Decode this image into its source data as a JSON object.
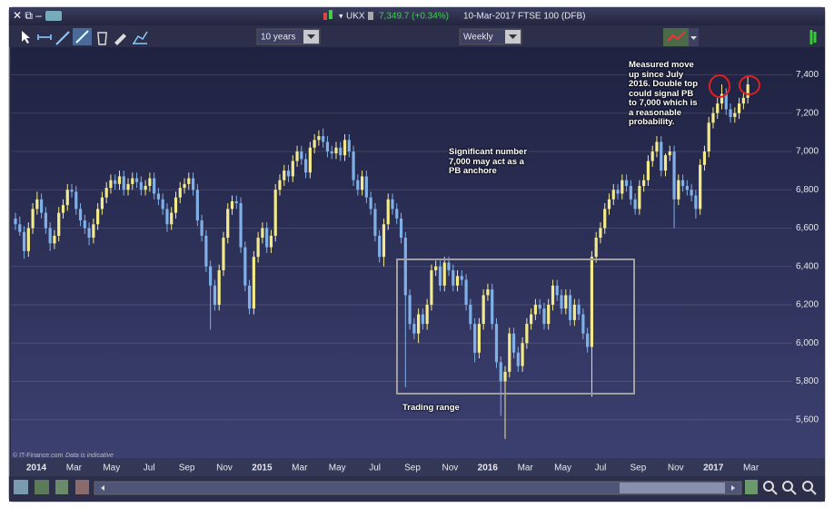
{
  "ui": {
    "symbol": "UKX",
    "price": "7,349.7 (+0.34%)",
    "header_info": "10-Mar-2017 FTSE 100 (DFB)",
    "period": "10 years",
    "interval": "Weekly",
    "copyright": "© IT-Finance.com",
    "disclaimer": "Data is indicative"
  },
  "chart_data": {
    "type": "candlestick",
    "annotations": [
      "Significant number 7,000 may act as a PB anchore",
      "Measured move up since July 2016. Double top could signal PB to 7,000 which is a reasonable probability.",
      "Trading range"
    ],
    "xticks": [
      "2014",
      "Mar",
      "May",
      "Jul",
      "Sep",
      "Nov",
      "2015",
      "Mar",
      "May",
      "Jul",
      "Sep",
      "Nov",
      "2016",
      "Mar",
      "May",
      "Jul",
      "Sep",
      "Nov",
      "2017",
      "Mar"
    ],
    "ylim": [
      5400,
      7530
    ],
    "yticks": [
      {
        "value": 5600,
        "label": "5,600"
      },
      {
        "value": 5800,
        "label": "5,800"
      },
      {
        "value": 6000,
        "label": "6,000"
      },
      {
        "value": 6200,
        "label": "6,200"
      },
      {
        "value": 6400,
        "label": "6,400"
      },
      {
        "value": 6600,
        "label": "6,600"
      },
      {
        "value": 6800,
        "label": "6,800"
      },
      {
        "value": 7000,
        "label": "7,000"
      },
      {
        "value": 7200,
        "label": "7,200"
      },
      {
        "value": 7400,
        "label": "7,400"
      }
    ],
    "grid": true,
    "up_color": "#f3ea8c",
    "down_color": "#7fb0e8",
    "open": [
      6650,
      6620,
      6580,
      6480,
      6600,
      6700,
      6750,
      6680,
      6600,
      6520,
      6560,
      6680,
      6720,
      6800,
      6790,
      6700,
      6640,
      6600,
      6550,
      6620,
      6700,
      6760,
      6810,
      6850,
      6830,
      6870,
      6800,
      6830,
      6860,
      6840,
      6800,
      6820,
      6860,
      6780,
      6750,
      6700,
      6620,
      6680,
      6760,
      6810,
      6830,
      6860,
      6800,
      6640,
      6560,
      6400,
      6300,
      6200,
      6380,
      6550,
      6700,
      6740,
      6730,
      6500,
      6300,
      6180,
      6450,
      6550,
      6600,
      6500,
      6560,
      6800,
      6850,
      6900,
      6870,
      6950,
      7000,
      6960,
      6890,
      7020,
      7060,
      7080,
      7050,
      7000,
      6990,
      7020,
      6980,
      7060,
      7000,
      6850,
      6800,
      6870,
      6760,
      6700,
      6560,
      6450,
      6620,
      6750,
      6700,
      6650,
      6550,
      6250,
      6100,
      6050,
      6150,
      6100,
      6200,
      6380,
      6400,
      6300,
      6420,
      6380,
      6300,
      6350,
      6330,
      6200,
      6100,
      5950,
      6100,
      6250,
      6280,
      6100,
      5900,
      5800,
      5850,
      6050,
      5950,
      5880,
      6000,
      6100,
      6150,
      6200,
      6180,
      6100,
      6200,
      6300,
      6250,
      6180,
      6250,
      6120,
      6200,
      6150,
      6050,
      5980,
      6450,
      6550,
      6600,
      6700,
      6750,
      6800,
      6780,
      6850,
      6820,
      6750,
      6700,
      6820,
      6850,
      6950,
      7000,
      7050,
      6900,
      6980,
      7000,
      6750,
      6850,
      6820,
      6800,
      6770,
      6700,
      6930,
      7000,
      7150,
      7200,
      7250,
      7300,
      7220,
      7180,
      7200,
      7250,
      7280
    ],
    "high": [
      6680,
      6660,
      6610,
      6630,
      6730,
      6790,
      6780,
      6710,
      6630,
      6590,
      6710,
      6750,
      6830,
      6830,
      6820,
      6730,
      6670,
      6630,
      6650,
      6730,
      6790,
      6840,
      6880,
      6880,
      6900,
      6900,
      6860,
      6890,
      6890,
      6870,
      6850,
      6890,
      6890,
      6810,
      6780,
      6730,
      6710,
      6790,
      6840,
      6860,
      6890,
      6890,
      6830,
      6670,
      6590,
      6430,
      6330,
      6410,
      6580,
      6730,
      6770,
      6770,
      6760,
      6530,
      6330,
      6480,
      6580,
      6630,
      6630,
      6590,
      6830,
      6880,
      6930,
      6930,
      6980,
      7030,
      7030,
      6990,
      7050,
      7090,
      7110,
      7120,
      7080,
      7030,
      7050,
      7050,
      7090,
      7090,
      7030,
      6880,
      6900,
      6900,
      6790,
      6730,
      6590,
      6650,
      6780,
      6780,
      6730,
      6680,
      6580,
      6280,
      6130,
      6180,
      6180,
      6230,
      6410,
      6430,
      6430,
      6450,
      6450,
      6410,
      6380,
      6380,
      6360,
      6230,
      6130,
      6130,
      6280,
      6310,
      6310,
      6130,
      5930,
      5880,
      6080,
      6080,
      5980,
      6030,
      6130,
      6180,
      6230,
      6230,
      6210,
      6230,
      6330,
      6330,
      6280,
      6280,
      6280,
      6230,
      6230,
      6180,
      6080,
      6480,
      6580,
      6630,
      6730,
      6780,
      6830,
      6830,
      6880,
      6880,
      6850,
      6780,
      6850,
      6880,
      6980,
      7030,
      7080,
      7080,
      6990,
      7030,
      7030,
      6880,
      6880,
      6850,
      6830,
      6800,
      6960,
      7030,
      7180,
      7230,
      7280,
      7350,
      7330,
      7250,
      7230,
      7280,
      7310,
      7390
    ],
    "low": [
      6590,
      6560,
      6440,
      6450,
      6570,
      6670,
      6650,
      6570,
      6480,
      6490,
      6530,
      6650,
      6690,
      6760,
      6670,
      6610,
      6570,
      6510,
      6520,
      6590,
      6670,
      6730,
      6780,
      6800,
      6800,
      6770,
      6770,
      6800,
      6810,
      6770,
      6770,
      6790,
      6750,
      6720,
      6670,
      6580,
      6590,
      6650,
      6730,
      6780,
      6800,
      6770,
      6610,
      6530,
      6370,
      6070,
      6170,
      6170,
      6350,
      6520,
      6670,
      6700,
      6470,
      6270,
      6150,
      6150,
      6420,
      6520,
      6470,
      6470,
      6530,
      6770,
      6820,
      6840,
      6840,
      6920,
      6930,
      6860,
      6860,
      6990,
      7030,
      7020,
      6970,
      6960,
      6960,
      6950,
      6950,
      6970,
      6820,
      6770,
      6770,
      6730,
      6670,
      6530,
      6420,
      6400,
      6590,
      6670,
      6620,
      6520,
      5770,
      6070,
      6020,
      6000,
      6070,
      6070,
      6170,
      6350,
      6270,
      6270,
      6350,
      6270,
      6270,
      6300,
      6170,
      6070,
      5900,
      5920,
      6070,
      6220,
      6070,
      5870,
      5620,
      5500,
      5820,
      5920,
      5850,
      5850,
      5970,
      6070,
      6120,
      6150,
      6070,
      6070,
      6170,
      6220,
      6150,
      6150,
      6090,
      6090,
      6120,
      6020,
      5950,
      5720,
      6420,
      6520,
      6570,
      6670,
      6720,
      6750,
      6750,
      6790,
      6720,
      6670,
      6670,
      6790,
      6820,
      6920,
      6970,
      6870,
      6870,
      6950,
      6600,
      6720,
      6790,
      6770,
      6740,
      6650,
      6670,
      6900,
      6970,
      7120,
      7170,
      7220,
      7190,
      7150,
      7150,
      7170,
      7220,
      7250
    ],
    "close": [
      6620,
      6580,
      6480,
      6600,
      6700,
      6750,
      6680,
      6600,
      6520,
      6560,
      6680,
      6720,
      6800,
      6790,
      6700,
      6640,
      6600,
      6550,
      6620,
      6700,
      6760,
      6810,
      6850,
      6830,
      6870,
      6800,
      6830,
      6860,
      6840,
      6800,
      6820,
      6860,
      6780,
      6750,
      6700,
      6620,
      6680,
      6760,
      6810,
      6830,
      6860,
      6800,
      6640,
      6560,
      6400,
      6300,
      6200,
      6380,
      6550,
      6700,
      6740,
      6730,
      6500,
      6300,
      6180,
      6450,
      6550,
      6600,
      6500,
      6560,
      6800,
      6850,
      6900,
      6870,
      6950,
      7000,
      6960,
      6890,
      7020,
      7060,
      7080,
      7050,
      7000,
      6990,
      7020,
      6980,
      7060,
      7000,
      6850,
      6800,
      6870,
      6760,
      6700,
      6560,
      6450,
      6620,
      6750,
      6700,
      6650,
      6550,
      6250,
      6100,
      6050,
      6150,
      6100,
      6200,
      6380,
      6400,
      6300,
      6420,
      6380,
      6300,
      6350,
      6330,
      6200,
      6100,
      5950,
      6100,
      6250,
      6280,
      6100,
      5900,
      5800,
      5850,
      6050,
      5950,
      5880,
      6000,
      6100,
      6150,
      6200,
      6180,
      6100,
      6200,
      6300,
      6250,
      6180,
      6250,
      6120,
      6200,
      6150,
      6050,
      5980,
      6450,
      6550,
      6600,
      6700,
      6750,
      6800,
      6780,
      6850,
      6820,
      6750,
      6700,
      6820,
      6850,
      6950,
      7000,
      7050,
      6900,
      6980,
      7000,
      6750,
      6850,
      6820,
      6800,
      6770,
      6700,
      6930,
      7000,
      7150,
      7200,
      7250,
      7300,
      7220,
      7180,
      7200,
      7250,
      7280,
      7350
    ]
  }
}
